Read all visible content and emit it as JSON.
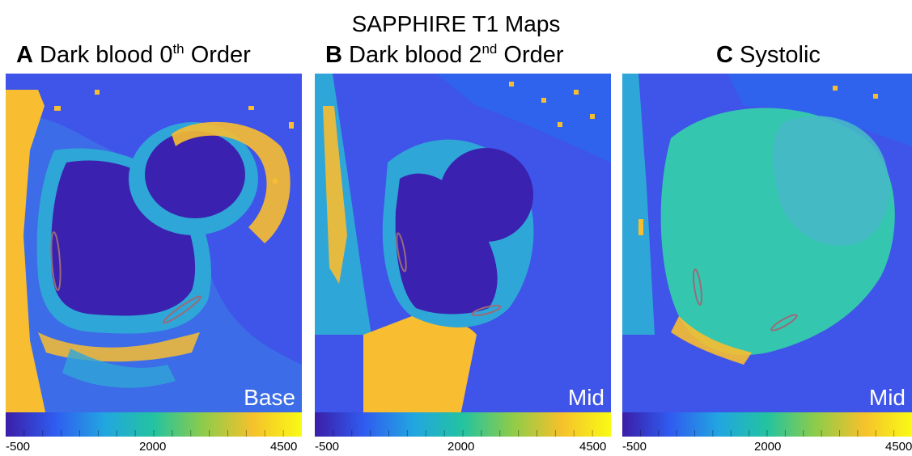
{
  "figure_title": "SAPPHIRE T1 Maps",
  "panels": [
    {
      "letter": "A",
      "title": "Dark blood 0",
      "ord": "th",
      "suffix": " Order",
      "tag": "Base"
    },
    {
      "letter": "B",
      "title": "Dark blood 2",
      "ord": "nd",
      "suffix": " Order",
      "tag": "Mid"
    },
    {
      "letter": "C",
      "title": "Systolic",
      "ord": "",
      "suffix": "",
      "tag": "Mid"
    }
  ],
  "colorbar": {
    "ticks": [
      "-500",
      "2000",
      "4500"
    ],
    "range": [
      -500,
      4500
    ],
    "colors": [
      "#3b1ea8",
      "#2f5cf0",
      "#22a6e0",
      "#23c3a0",
      "#8dcc4a",
      "#f5c12c",
      "#f9fb14"
    ]
  },
  "roi_color": "#9a6b78"
}
